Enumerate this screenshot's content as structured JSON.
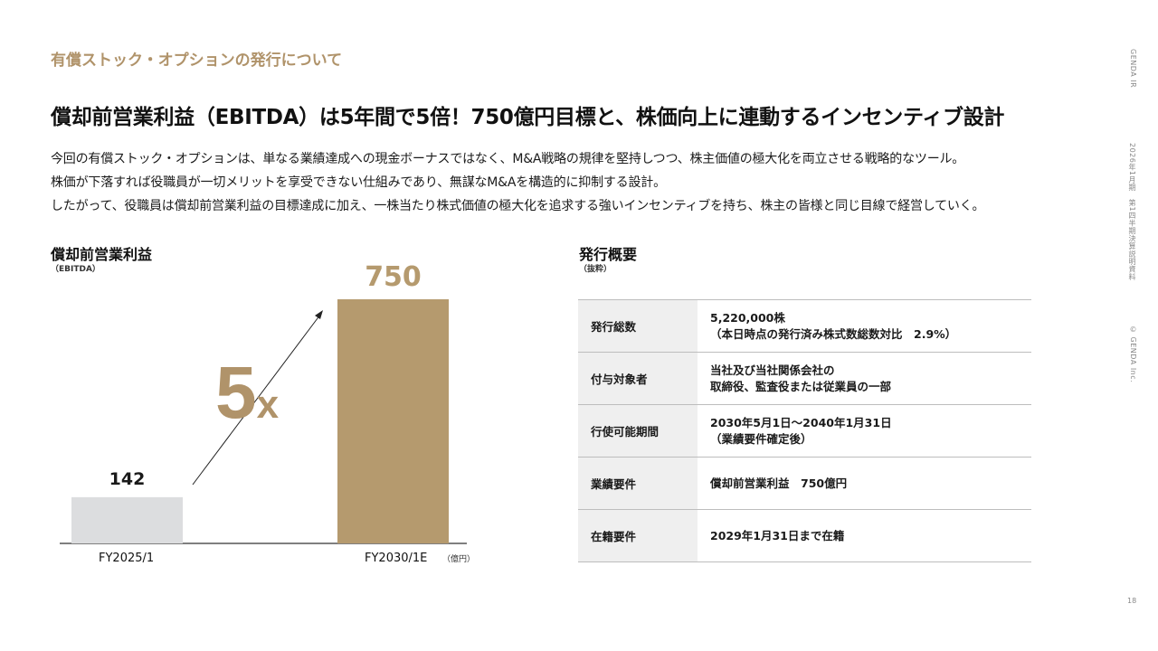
{
  "header": {
    "section_label": "有償ストック・オプションの発行について",
    "headline": "償却前営業利益（EBITDA）は5年間で5倍！750億円目標と、株価向上に連動するインセンティブ設計"
  },
  "body_lines": [
    "今回の有償ストック・オプションは、単なる業績達成への現金ボーナスではなく、M&A戦略の規律を堅持しつつ、株主価値の極大化を両立させる戦略的なツール。",
    "株価が下落すれば役職員が一切メリットを享受できない仕組みであり、無謀なM&Aを構造的に抑制する設計。",
    "したがって、役職員は償却前営業利益の目標達成に加え、一株当たり株式価値の極大化を追求する強いインセンティブを持ち、株主の皆様と同じ目線で経営していく。"
  ],
  "side": {
    "brand": "GENDA IR",
    "doc": "2026年1月期　第1四半期決算説明資料",
    "copyright": "© GENDA Inc.",
    "page": "18"
  },
  "chart_block": {
    "title": "償却前営業利益",
    "subtitle": "（EBITDA）",
    "multiplier_num": "5",
    "multiplier_x": "x",
    "unit": "（億円）"
  },
  "chart_data": {
    "type": "bar",
    "title": "償却前営業利益",
    "categories": [
      "FY2025/1",
      "FY2030/1E"
    ],
    "values": [
      142,
      750
    ],
    "value_labels": [
      "142",
      "750"
    ],
    "ylabel": "（億円）",
    "ylim": [
      0,
      850
    ],
    "colors": [
      "#dcdddf",
      "#b59a6e"
    ],
    "grid": false,
    "annotation": "5x"
  },
  "summary_block": {
    "title": "発行概要",
    "subtitle": "（抜粋）",
    "rows": [
      {
        "key": "発行総数",
        "lines": [
          "5,220,000株",
          "（本日時点の発行済み株式数総数対比　2.9%）"
        ]
      },
      {
        "key": "付与対象者",
        "lines": [
          "当社及び当社関係会社の",
          "取締役、監査役または従業員の一部"
        ]
      },
      {
        "key": "行使可能期間",
        "lines": [
          "2030年5月1日～2040年1月31日",
          "（業績要件確定後）"
        ]
      },
      {
        "key": "業績要件",
        "lines": [
          "償却前営業利益　750億円"
        ]
      },
      {
        "key": "在籍要件",
        "lines": [
          "2029年1月31日まで在籍"
        ]
      }
    ]
  },
  "colors": {
    "accent": "#b0936a",
    "bar_gold": "#b59a6e",
    "bar_grey": "#dcdddf"
  }
}
